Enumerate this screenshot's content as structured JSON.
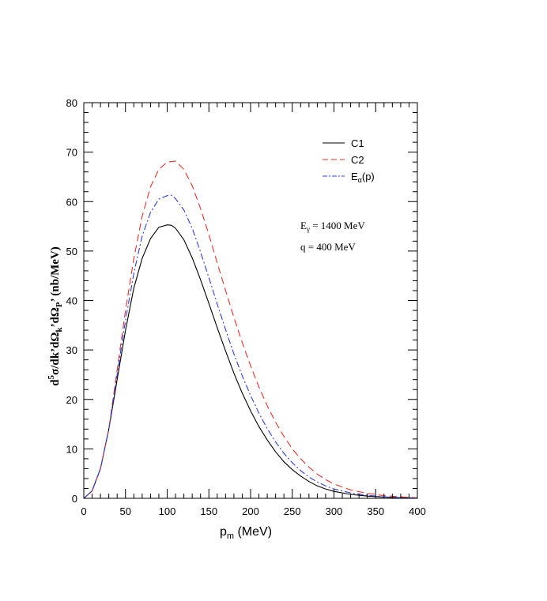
{
  "chart_data": {
    "type": "line",
    "xlabel": {
      "main": "p",
      "sub": "m",
      "rest": " (MeV)"
    },
    "ylabel": {
      "parts": [
        {
          "t": "d",
          "k": "n"
        },
        {
          "t": "5",
          "k": "sup"
        },
        {
          "t": "σ/dk’dΩ",
          "k": "n"
        },
        {
          "t": "k",
          "k": "sub"
        },
        {
          "t": "’dΩ",
          "k": "n"
        },
        {
          "t": "P",
          "k": "sub"
        },
        {
          "t": "’ (nb/MeV)",
          "k": "n"
        }
      ]
    },
    "xlim": [
      0,
      400
    ],
    "ylim": [
      0,
      80
    ],
    "xticks": [
      0,
      50,
      100,
      150,
      200,
      250,
      300,
      350,
      400
    ],
    "yticks": [
      0,
      10,
      20,
      30,
      40,
      50,
      60,
      70,
      80
    ],
    "grid": false,
    "legend_position": "top-right",
    "series": [
      {
        "name": "C1",
        "name_sub": "",
        "name_rest": "",
        "style": "solid",
        "color": "#000000",
        "x": [
          0,
          10,
          20,
          30,
          40,
          50,
          60,
          70,
          80,
          90,
          100,
          105,
          110,
          120,
          130,
          140,
          150,
          160,
          170,
          180,
          190,
          200,
          210,
          220,
          230,
          240,
          250,
          260,
          270,
          280,
          290,
          300,
          320,
          340,
          360,
          380,
          400
        ],
        "y": [
          0,
          1.5,
          6,
          14,
          24,
          34,
          42.5,
          48.5,
          52.5,
          54.8,
          55.3,
          55.2,
          54.6,
          52.3,
          48.6,
          44.2,
          39.4,
          34.5,
          29.8,
          25.3,
          21.3,
          17.7,
          14.5,
          11.8,
          9.4,
          7.4,
          5.8,
          4.5,
          3.4,
          2.5,
          1.9,
          1.4,
          0.8,
          0.45,
          0.25,
          0.12,
          0.05
        ]
      },
      {
        "name": "C2",
        "name_sub": "",
        "name_rest": "",
        "style": "dashed",
        "color": "#e8302a",
        "x": [
          0,
          10,
          20,
          30,
          40,
          50,
          60,
          70,
          80,
          90,
          100,
          110,
          120,
          130,
          140,
          150,
          160,
          170,
          180,
          190,
          200,
          210,
          220,
          230,
          240,
          250,
          260,
          270,
          280,
          290,
          300,
          320,
          340,
          360,
          380,
          400
        ],
        "y": [
          0,
          1.5,
          6,
          14,
          26,
          38,
          48.5,
          57,
          63,
          66.5,
          68,
          68.2,
          66.5,
          63.2,
          58.6,
          53.3,
          47.6,
          42,
          36.6,
          31.5,
          26.8,
          22.5,
          18.7,
          15.4,
          12.5,
          10,
          8,
          6.3,
          4.9,
          3.8,
          2.9,
          1.7,
          1,
          0.55,
          0.3,
          0.1
        ]
      },
      {
        "name": "E",
        "name_sub": "α",
        "name_rest": "(p)",
        "style": "dashdot",
        "color": "#2b3fd6",
        "x": [
          0,
          10,
          20,
          30,
          40,
          50,
          60,
          70,
          80,
          90,
          100,
          105,
          110,
          120,
          130,
          140,
          150,
          160,
          170,
          180,
          190,
          200,
          210,
          220,
          230,
          240,
          250,
          260,
          270,
          280,
          290,
          300,
          320,
          340,
          360,
          380,
          400
        ],
        "y": [
          0,
          1.5,
          6,
          14,
          25,
          36,
          45.5,
          53,
          57.8,
          60.5,
          61.2,
          61.3,
          60.6,
          58.3,
          54.6,
          49.8,
          44.6,
          39.3,
          34.1,
          29.2,
          24.8,
          20.8,
          17.2,
          14.1,
          11.4,
          9.1,
          7.2,
          5.6,
          4.3,
          3.3,
          2.5,
          1.9,
          1.1,
          0.6,
          0.3,
          0.15,
          0.05
        ]
      }
    ],
    "annotations": [
      {
        "main": "E",
        "sub": "γ",
        "rest": " = 1400 MeV"
      },
      {
        "main": "q = 400 MeV",
        "sub": "",
        "rest": ""
      }
    ]
  }
}
